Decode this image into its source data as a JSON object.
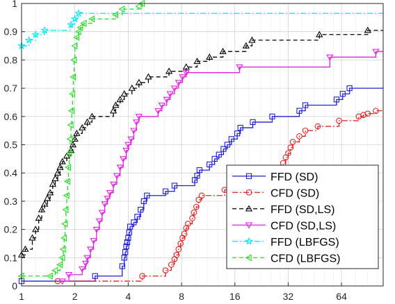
{
  "chart_data": {
    "type": "line",
    "step": true,
    "xscale": "log2",
    "xlim": [
      1,
      110
    ],
    "ylim": [
      0,
      1
    ],
    "grid": true,
    "legend_position": "lower-right",
    "title": "",
    "xlabel": "",
    "ylabel": "",
    "x_ticks": [
      {
        "value": 1,
        "label": "1"
      },
      {
        "value": 2,
        "label": "2"
      },
      {
        "value": 4,
        "label": "4"
      },
      {
        "value": 8,
        "label": "8"
      },
      {
        "value": 16,
        "label": "16"
      },
      {
        "value": 32,
        "label": "32"
      },
      {
        "value": 64,
        "label": "64"
      }
    ],
    "y_ticks": [
      {
        "value": 0,
        "label": "0"
      },
      {
        "value": 0.1,
        "label": "0.1"
      },
      {
        "value": 0.2,
        "label": "0.2"
      },
      {
        "value": 0.3,
        "label": "0.3"
      },
      {
        "value": 0.4,
        "label": "0.4"
      },
      {
        "value": 0.5,
        "label": "0.5"
      },
      {
        "value": 0.6,
        "label": "0.6"
      },
      {
        "value": 0.7,
        "label": "0.7"
      },
      {
        "value": 0.8,
        "label": "0.8"
      },
      {
        "value": 0.9,
        "label": "0.9"
      },
      {
        "value": 1,
        "label": "1"
      }
    ],
    "series": [
      {
        "name": "FFD (SD)",
        "color": "#1f1fd6",
        "line": "solid",
        "marker": "square",
        "points": [
          [
            1,
            0.017
          ],
          [
            2.6,
            0.035
          ],
          [
            3.7,
            0.07
          ],
          [
            3.8,
            0.1
          ],
          [
            3.85,
            0.12
          ],
          [
            3.9,
            0.14
          ],
          [
            3.95,
            0.155
          ],
          [
            4.0,
            0.17
          ],
          [
            4.05,
            0.19
          ],
          [
            4.1,
            0.21
          ],
          [
            4.3,
            0.225
          ],
          [
            4.5,
            0.245
          ],
          [
            4.7,
            0.27
          ],
          [
            4.9,
            0.3
          ],
          [
            5.1,
            0.32
          ],
          [
            6.5,
            0.335
          ],
          [
            7.3,
            0.355
          ],
          [
            9.5,
            0.375
          ],
          [
            9.8,
            0.39
          ],
          [
            10.1,
            0.41
          ],
          [
            11.5,
            0.43
          ],
          [
            12.3,
            0.45
          ],
          [
            13.0,
            0.465
          ],
          [
            13.8,
            0.485
          ],
          [
            14.5,
            0.5
          ],
          [
            15.3,
            0.52
          ],
          [
            16.5,
            0.54
          ],
          [
            17.2,
            0.56
          ],
          [
            20.2,
            0.58
          ],
          [
            26,
            0.6
          ],
          [
            37,
            0.62
          ],
          [
            40,
            0.64
          ],
          [
            60,
            0.66
          ],
          [
            65,
            0.68
          ],
          [
            71,
            0.7
          ],
          [
            110,
            0.7
          ]
        ]
      },
      {
        "name": "CFD (SD)",
        "color": "#e02020",
        "line": "dashdot",
        "marker": "circle",
        "points": [
          [
            1.6,
            0.017
          ],
          [
            4.8,
            0.035
          ],
          [
            6.5,
            0.055
          ],
          [
            7.0,
            0.075
          ],
          [
            7.3,
            0.095
          ],
          [
            7.5,
            0.11
          ],
          [
            7.7,
            0.13
          ],
          [
            7.9,
            0.15
          ],
          [
            8.1,
            0.17
          ],
          [
            8.3,
            0.185
          ],
          [
            8.5,
            0.205
          ],
          [
            8.7,
            0.22
          ],
          [
            9.2,
            0.24
          ],
          [
            9.4,
            0.26
          ],
          [
            9.7,
            0.28
          ],
          [
            10.0,
            0.305
          ],
          [
            10.4,
            0.32
          ],
          [
            14.0,
            0.34
          ],
          [
            15.5,
            0.355
          ],
          [
            20,
            0.375
          ],
          [
            23,
            0.395
          ],
          [
            26,
            0.415
          ],
          [
            30,
            0.435
          ],
          [
            31,
            0.455
          ],
          [
            32,
            0.47
          ],
          [
            33,
            0.49
          ],
          [
            34,
            0.51
          ],
          [
            37,
            0.53
          ],
          [
            40,
            0.55
          ],
          [
            47,
            0.565
          ],
          [
            62,
            0.585
          ],
          [
            80,
            0.6
          ],
          [
            85,
            0.605
          ],
          [
            90,
            0.61
          ],
          [
            100,
            0.62
          ],
          [
            110,
            0.62
          ]
        ]
      },
      {
        "name": "FFD (SD,LS)",
        "color": "#000000",
        "line": "dashed",
        "marker": "triangle-up",
        "points": [
          [
            1,
            0.11
          ],
          [
            1.05,
            0.13
          ],
          [
            1.15,
            0.17
          ],
          [
            1.2,
            0.2
          ],
          [
            1.25,
            0.24
          ],
          [
            1.3,
            0.27
          ],
          [
            1.35,
            0.29
          ],
          [
            1.4,
            0.31
          ],
          [
            1.45,
            0.33
          ],
          [
            1.5,
            0.36
          ],
          [
            1.55,
            0.38
          ],
          [
            1.6,
            0.4
          ],
          [
            1.65,
            0.42
          ],
          [
            1.7,
            0.44
          ],
          [
            1.8,
            0.46
          ],
          [
            1.9,
            0.48
          ],
          [
            1.95,
            0.5
          ],
          [
            2.0,
            0.52
          ],
          [
            2.05,
            0.54
          ],
          [
            2.2,
            0.56
          ],
          [
            2.35,
            0.58
          ],
          [
            2.5,
            0.6
          ],
          [
            3.3,
            0.62
          ],
          [
            3.4,
            0.64
          ],
          [
            3.6,
            0.66
          ],
          [
            3.8,
            0.68
          ],
          [
            4.2,
            0.7
          ],
          [
            4.6,
            0.72
          ],
          [
            5.2,
            0.74
          ],
          [
            6.8,
            0.76
          ],
          [
            8.5,
            0.775
          ],
          [
            9.8,
            0.795
          ],
          [
            11.5,
            0.81
          ],
          [
            13.7,
            0.83
          ],
          [
            18.5,
            0.85
          ],
          [
            20,
            0.87
          ],
          [
            48,
            0.89
          ],
          [
            90,
            0.905
          ],
          [
            110,
            0.905
          ]
        ]
      },
      {
        "name": "CFD (SD,LS)",
        "color": "#e020e0",
        "line": "solid",
        "marker": "triangle-down",
        "points": [
          [
            1.7,
            0.017
          ],
          [
            1.85,
            0.04
          ],
          [
            2.2,
            0.06
          ],
          [
            2.3,
            0.08
          ],
          [
            2.35,
            0.1
          ],
          [
            2.45,
            0.13
          ],
          [
            2.55,
            0.16
          ],
          [
            2.65,
            0.2
          ],
          [
            2.75,
            0.23
          ],
          [
            2.85,
            0.26
          ],
          [
            2.95,
            0.29
          ],
          [
            3.05,
            0.31
          ],
          [
            3.15,
            0.33
          ],
          [
            3.3,
            0.36
          ],
          [
            3.45,
            0.39
          ],
          [
            3.6,
            0.42
          ],
          [
            3.75,
            0.45
          ],
          [
            3.9,
            0.48
          ],
          [
            4.0,
            0.5
          ],
          [
            4.15,
            0.52
          ],
          [
            4.3,
            0.55
          ],
          [
            4.45,
            0.58
          ],
          [
            4.6,
            0.6
          ],
          [
            5.9,
            0.62
          ],
          [
            6.2,
            0.64
          ],
          [
            6.6,
            0.66
          ],
          [
            6.9,
            0.68
          ],
          [
            7.3,
            0.7
          ],
          [
            7.7,
            0.72
          ],
          [
            8.1,
            0.74
          ],
          [
            8.5,
            0.755
          ],
          [
            17,
            0.775
          ],
          [
            55,
            0.81
          ],
          [
            100,
            0.83
          ],
          [
            110,
            0.83
          ]
        ]
      },
      {
        "name": "FFD (LBFGS)",
        "color": "#00e5ee",
        "line": "dashdot",
        "marker": "star",
        "points": [
          [
            1,
            0.85
          ],
          [
            1.1,
            0.87
          ],
          [
            1.2,
            0.89
          ],
          [
            1.35,
            0.905
          ],
          [
            1.9,
            0.925
          ],
          [
            2.0,
            0.945
          ],
          [
            2.1,
            0.965
          ],
          [
            110,
            0.965
          ]
        ]
      },
      {
        "name": "CFD (LBFGS)",
        "color": "#22dd22",
        "line": "dashed",
        "marker": "triangle-left",
        "points": [
          [
            1,
            0.035
          ],
          [
            1.45,
            0.035
          ],
          [
            1.55,
            0.055
          ],
          [
            1.65,
            0.075
          ],
          [
            1.7,
            0.1
          ],
          [
            1.72,
            0.13
          ],
          [
            1.74,
            0.17
          ],
          [
            1.76,
            0.22
          ],
          [
            1.78,
            0.27
          ],
          [
            1.8,
            0.32
          ],
          [
            1.82,
            0.37
          ],
          [
            1.84,
            0.42
          ],
          [
            1.86,
            0.47
          ],
          [
            1.88,
            0.52
          ],
          [
            1.9,
            0.57
          ],
          [
            1.92,
            0.62
          ],
          [
            1.94,
            0.68
          ],
          [
            1.96,
            0.74
          ],
          [
            1.98,
            0.8
          ],
          [
            2.0,
            0.85
          ],
          [
            2.05,
            0.88
          ],
          [
            2.1,
            0.9
          ],
          [
            2.15,
            0.915
          ],
          [
            2.25,
            0.93
          ],
          [
            2.5,
            0.945
          ],
          [
            3.4,
            0.96
          ],
          [
            3.7,
            0.98
          ],
          [
            4.6,
            0.99
          ],
          [
            4.8,
            1.0
          ]
        ]
      }
    ]
  }
}
